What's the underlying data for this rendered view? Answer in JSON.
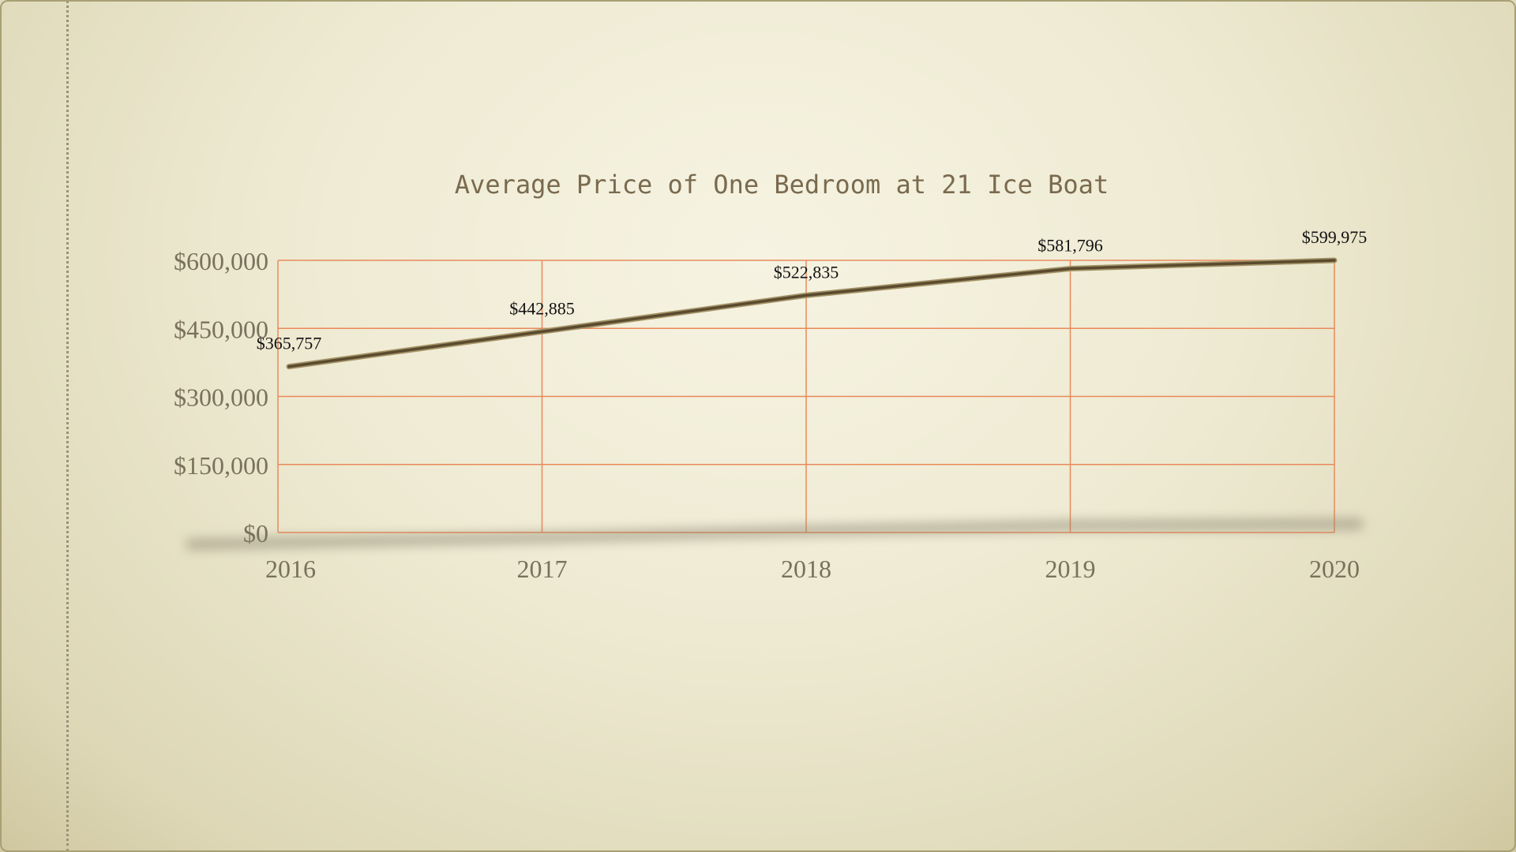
{
  "chart_data": {
    "type": "line",
    "title": "Average Price of One Bedroom at 21 Ice Boat",
    "categories": [
      "2016",
      "2017",
      "2018",
      "2019",
      "2020"
    ],
    "series": [
      {
        "values": [
          365757,
          442885,
          522835,
          581796,
          599975
        ],
        "value_labels": [
          "$365,757",
          "$442,885",
          "$522,835",
          "$581,796",
          "$599,975"
        ]
      }
    ],
    "ylim": [
      0,
      600000
    ],
    "y_ticks": [
      0,
      150000,
      300000,
      450000,
      600000
    ],
    "y_tick_labels": [
      "$0",
      "$150,000",
      "$300,000",
      "$450,000",
      "$600,000"
    ],
    "grid": true,
    "legend": "none",
    "colors": {
      "line": "#5a4a2e",
      "grid": "#e98a5a",
      "title": "#7a6a4e",
      "ticks": "#7a715c",
      "labels": "#111111"
    }
  }
}
